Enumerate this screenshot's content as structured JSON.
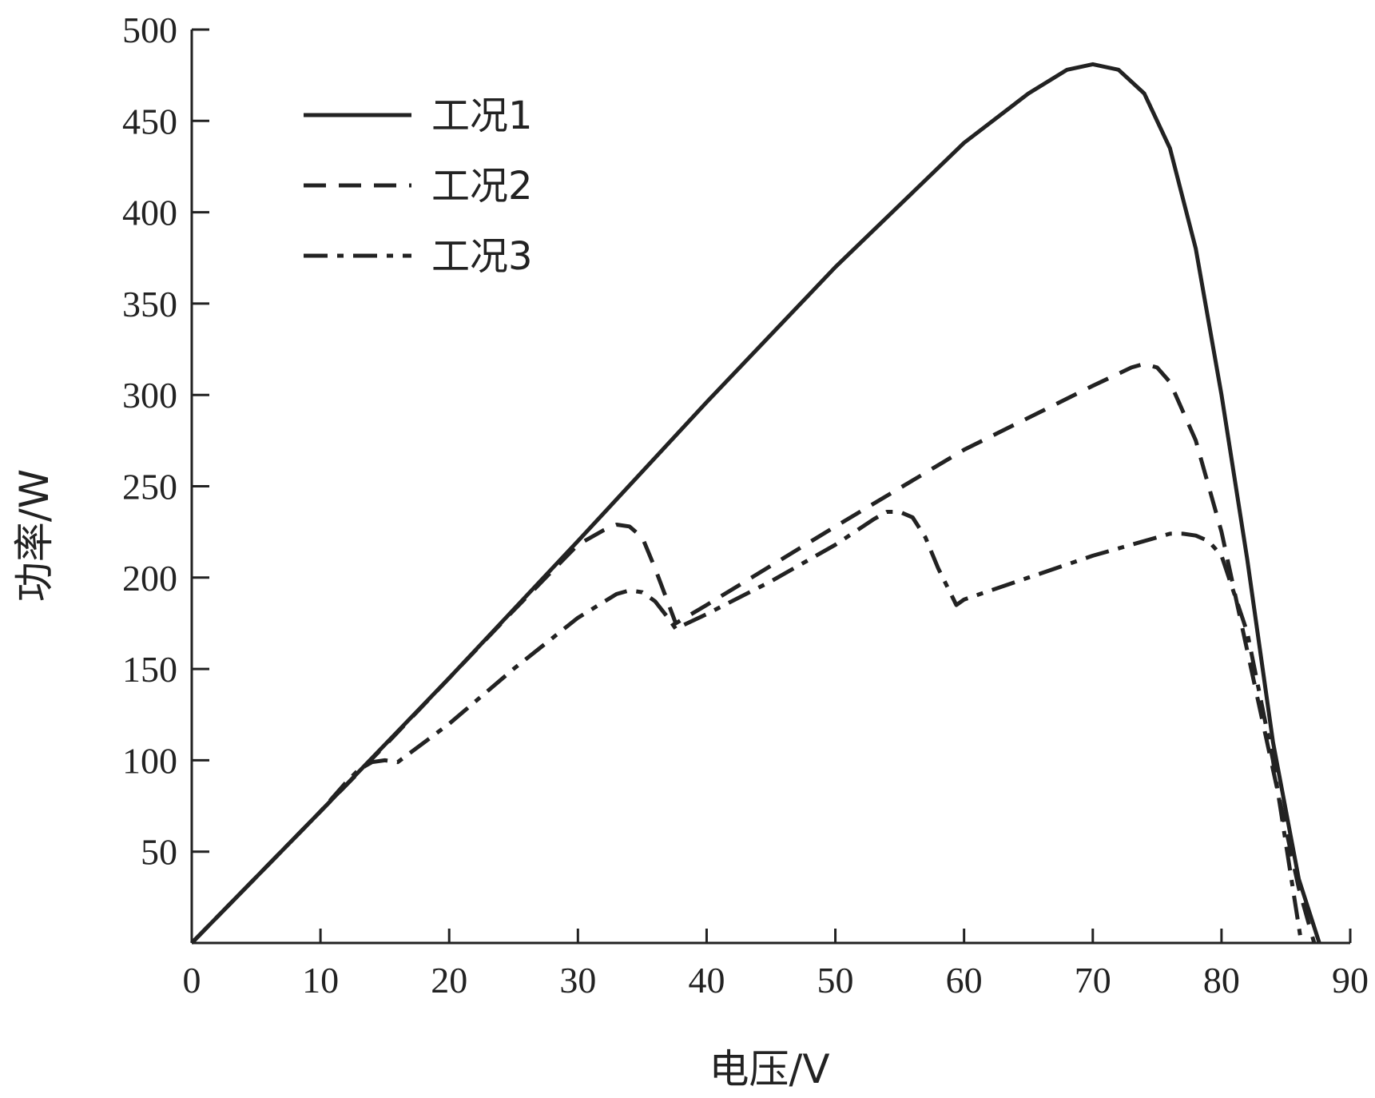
{
  "chart_data": {
    "type": "line",
    "xlabel": "电压/V",
    "ylabel": "功率/W",
    "xlim": [
      0,
      90
    ],
    "ylim": [
      0,
      500
    ],
    "x_ticks": [
      0,
      10,
      20,
      30,
      40,
      50,
      60,
      70,
      80,
      90
    ],
    "y_ticks": [
      50,
      100,
      150,
      200,
      250,
      300,
      350,
      400,
      450,
      500
    ],
    "x_tick_labels": [
      "0",
      "10",
      "20",
      "30",
      "40",
      "50",
      "60",
      "70",
      "80",
      "90"
    ],
    "y_tick_labels": [
      "50",
      "100",
      "150",
      "200",
      "250",
      "300",
      "350",
      "400",
      "450",
      "500"
    ],
    "grid": false,
    "legend": "top-left",
    "series": [
      {
        "name": "工况1",
        "style": "solid",
        "x": [
          0,
          10,
          20,
          30,
          40,
          50,
          60,
          65,
          68,
          70,
          72,
          74,
          76,
          78,
          80,
          82,
          84,
          86,
          87.6
        ],
        "y": [
          0,
          72,
          145,
          220,
          296,
          370,
          438,
          465,
          478,
          481,
          478,
          465,
          435,
          380,
          300,
          210,
          110,
          35,
          0
        ]
      },
      {
        "name": "工况2",
        "style": "dashed",
        "x": [
          0,
          10,
          15,
          20,
          25,
          30,
          32,
          33,
          34,
          35,
          36,
          37.6,
          40,
          50,
          60,
          70,
          73,
          74,
          75,
          76,
          78,
          80,
          82,
          84,
          86,
          87.2
        ],
        "y": [
          0,
          72,
          108,
          145,
          182,
          218,
          226,
          229,
          228,
          222,
          205,
          175,
          185,
          228,
          270,
          305,
          315,
          317,
          315,
          307,
          275,
          225,
          160,
          95,
          30,
          0
        ]
      },
      {
        "name": "工况3",
        "style": "dashdot",
        "x": [
          0,
          10,
          12,
          13,
          14,
          15,
          16,
          20,
          25,
          30,
          33,
          34,
          35,
          36,
          37,
          37.6,
          40,
          45,
          50,
          53,
          54,
          55,
          56,
          57,
          58,
          59.4,
          60,
          65,
          70,
          75,
          76,
          77,
          78,
          79,
          80,
          82,
          84,
          86.2
        ],
        "y": [
          0,
          72,
          88,
          95,
          99,
          100,
          99,
          120,
          150,
          178,
          191,
          193,
          192,
          187,
          178,
          172,
          180,
          198,
          218,
          232,
          236,
          236,
          233,
          222,
          205,
          185,
          188,
          200,
          212,
          222,
          224,
          224,
          223,
          220,
          212,
          170,
          100,
          0
        ]
      }
    ]
  }
}
